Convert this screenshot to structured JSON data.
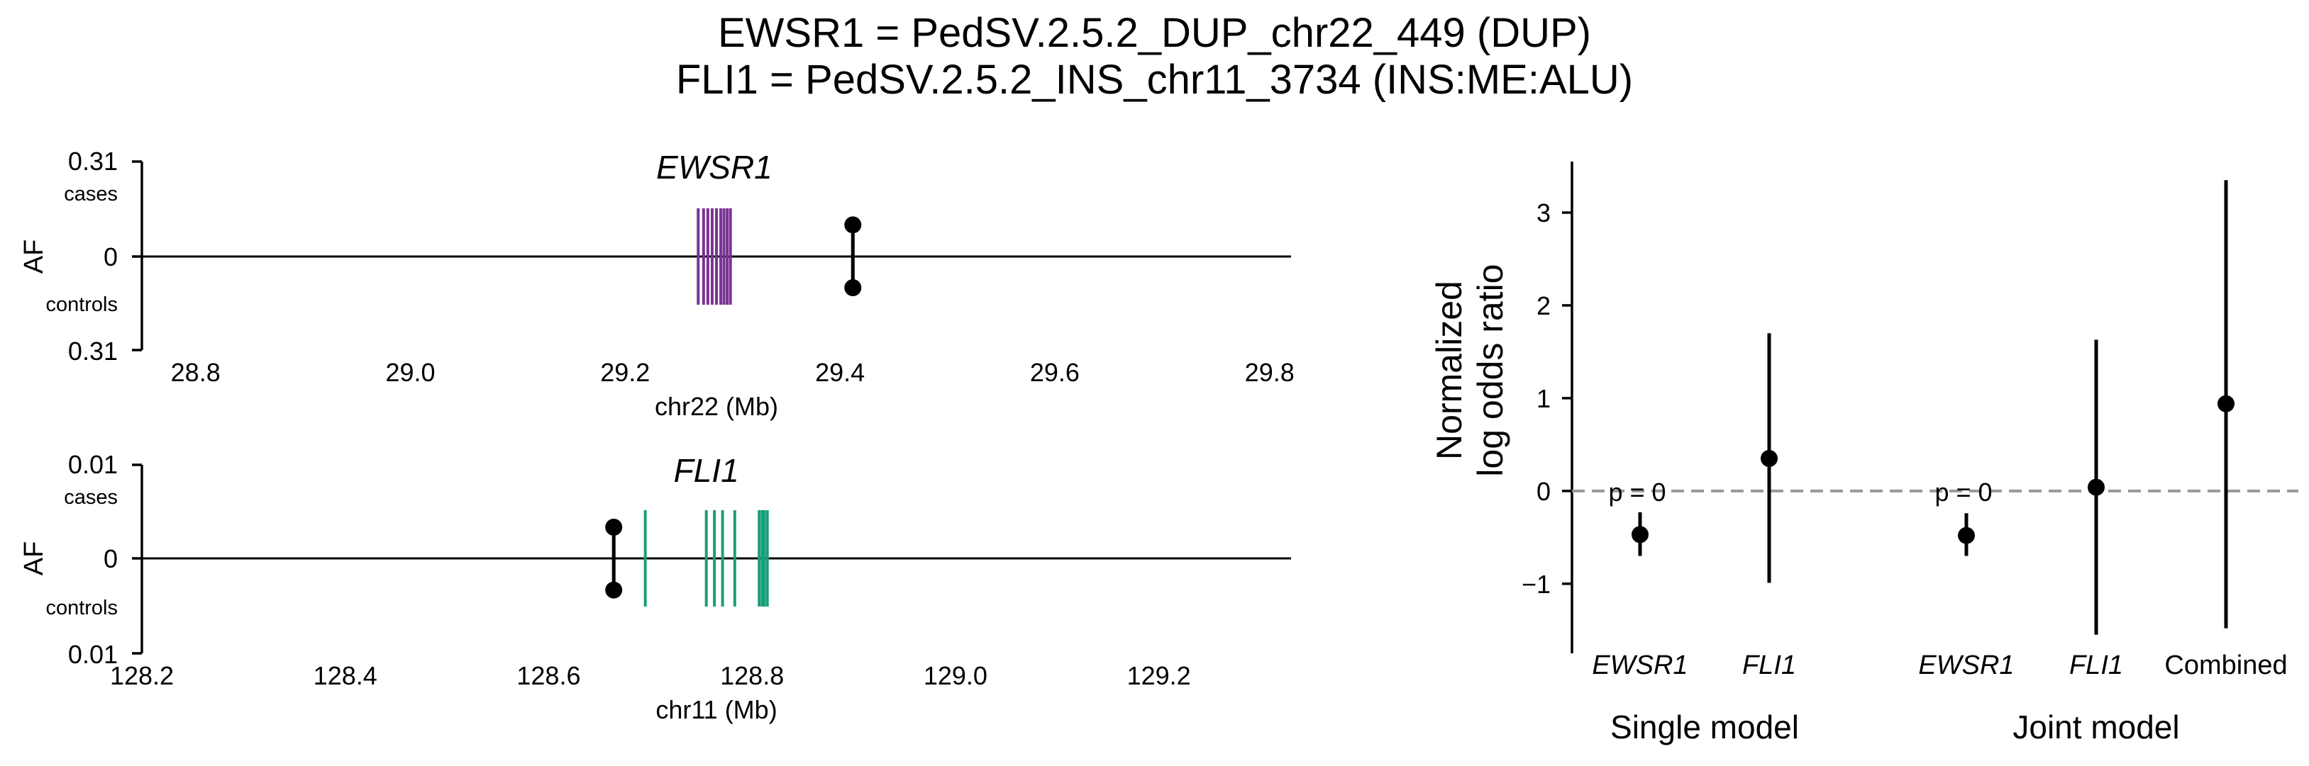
{
  "figure": {
    "title_line1": "EWSR1 = PedSV.2.5.2_DUP_chr22_449 (DUP)",
    "title_line2": "FLI1 = PedSV.2.5.2_INS_chr11_3734 (INS:ME:ALU)"
  },
  "chart_data": [
    {
      "type": "scatter",
      "panel": "locus-ewsr1",
      "title": "EWSR1",
      "xlabel": "chr22 (Mb)",
      "ylabel": "AF",
      "xlim": [
        28.75,
        29.82
      ],
      "xticks": [
        "28.8",
        "29.0",
        "29.2",
        "29.4",
        "29.6",
        "29.8"
      ],
      "ytick_top": "0.31",
      "ytick_mid": "0",
      "ytick_bottom": "0.31",
      "upper_label": "cases",
      "lower_label": "controls",
      "gene_color": "#7b3294",
      "gene_exons_mb": [
        29.268,
        29.273,
        29.277,
        29.281,
        29.285,
        29.289,
        29.292,
        29.295,
        29.298
      ],
      "variant_position_mb": 29.412,
      "af_cases": 0.11,
      "af_controls": 0.11
    },
    {
      "type": "scatter",
      "panel": "locus-fli1",
      "title": "FLI1",
      "xlabel": "chr11 (Mb)",
      "ylabel": "AF",
      "xlim": [
        128.2,
        129.33
      ],
      "xticks": [
        "128.2",
        "128.4",
        "128.6",
        "128.8",
        "129.0",
        "129.2"
      ],
      "ytick_top": "0.01",
      "ytick_mid": "0",
      "ytick_bottom": "0.01",
      "upper_label": "cases",
      "lower_label": "controls",
      "gene_color": "#1a9e77",
      "gene_exons_mb": [
        128.695,
        128.755,
        128.763,
        128.771,
        128.783,
        128.807,
        128.81,
        128.812,
        128.815
      ],
      "variant_position_mb": 128.664,
      "af_cases": 0.0035,
      "af_controls": 0.0035
    },
    {
      "type": "scatter",
      "panel": "forest",
      "ylabel_line1": "Normalized",
      "ylabel_line2": "log odds ratio",
      "ylim": [
        -1.75,
        3.55
      ],
      "yticks": [
        -1,
        0,
        1,
        2,
        3
      ],
      "ytick_labels": [
        "−1",
        "0",
        "1",
        "2",
        "3"
      ],
      "reference_line": 0,
      "groups": [
        {
          "label": "Single model",
          "categories": [
            "EWSR1",
            "FLI1"
          ]
        },
        {
          "label": "Joint model",
          "categories": [
            "EWSR1",
            "FLI1",
            "Combined"
          ]
        }
      ],
      "points": [
        {
          "model": "Single model",
          "name": "EWSR1",
          "italic": true,
          "estimate": -0.47,
          "ci_low": -0.7,
          "ci_high": -0.23,
          "annotation": "p = 0"
        },
        {
          "model": "Single model",
          "name": "FLI1",
          "italic": true,
          "estimate": 0.35,
          "ci_low": -0.99,
          "ci_high": 1.7,
          "annotation": ""
        },
        {
          "model": "Joint model",
          "name": "EWSR1",
          "italic": true,
          "estimate": -0.48,
          "ci_low": -0.7,
          "ci_high": -0.24,
          "annotation": "p = 0"
        },
        {
          "model": "Joint model",
          "name": "FLI1",
          "italic": true,
          "estimate": 0.04,
          "ci_low": -1.55,
          "ci_high": 1.63,
          "annotation": ""
        },
        {
          "model": "Joint model",
          "name": "Combined",
          "italic": false,
          "estimate": 0.94,
          "ci_low": -1.48,
          "ci_high": 3.35,
          "annotation": ""
        }
      ]
    }
  ]
}
